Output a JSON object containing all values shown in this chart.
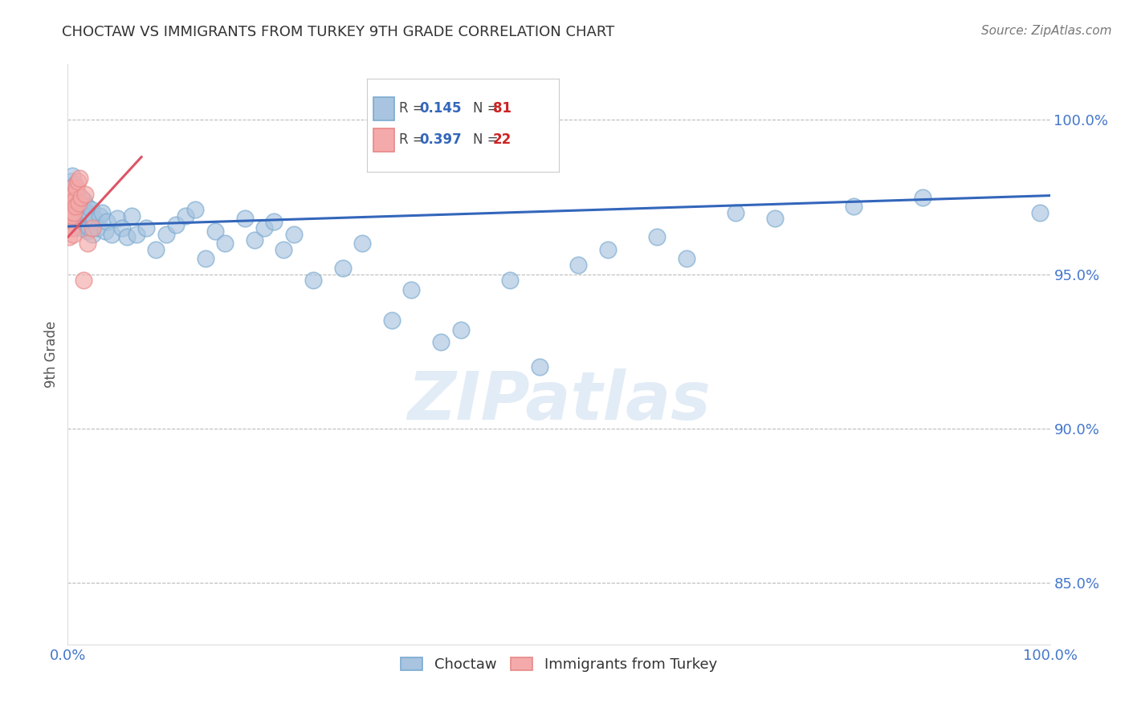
{
  "title": "CHOCTAW VS IMMIGRANTS FROM TURKEY 9TH GRADE CORRELATION CHART",
  "source": "Source: ZipAtlas.com",
  "ylabel": "9th Grade",
  "xlim": [
    0.0,
    100.0
  ],
  "ylim": [
    83.0,
    101.8
  ],
  "yticks": [
    85.0,
    90.0,
    95.0,
    100.0
  ],
  "xticks": [
    0.0,
    100.0
  ],
  "blue_color": "#A8C4E0",
  "pink_color": "#F4AAAA",
  "blue_edge_color": "#7AAAD0",
  "pink_edge_color": "#E88888",
  "blue_line_color": "#3366BB",
  "pink_line_color": "#DD5566",
  "axis_color": "#4477CC",
  "title_color": "#333333",
  "watermark_text": "ZIPatlas",
  "blue_line_x": [
    0.0,
    100.0
  ],
  "blue_line_y": [
    96.55,
    97.55
  ],
  "pink_line_x": [
    0.0,
    7.5
  ],
  "pink_line_y": [
    96.2,
    98.8
  ],
  "blue_scatter_x": [
    0.2,
    0.3,
    0.3,
    0.4,
    0.4,
    0.5,
    0.5,
    0.5,
    0.6,
    0.6,
    0.7,
    0.7,
    0.7,
    0.8,
    0.8,
    0.9,
    1.0,
    1.0,
    1.1,
    1.2,
    1.3,
    1.4,
    1.5,
    1.5,
    1.6,
    1.7,
    1.8,
    1.9,
    2.0,
    2.0,
    2.1,
    2.2,
    2.3,
    2.4,
    2.5,
    2.6,
    2.7,
    3.0,
    3.2,
    3.5,
    3.8,
    4.0,
    4.5,
    5.0,
    5.5,
    6.0,
    6.5,
    7.0,
    8.0,
    9.0,
    10.0,
    11.0,
    12.0,
    13.0,
    14.0,
    15.0,
    16.0,
    18.0,
    19.0,
    20.0,
    21.0,
    22.0,
    23.0,
    25.0,
    28.0,
    30.0,
    33.0,
    35.0,
    38.0,
    40.0,
    45.0,
    48.0,
    52.0,
    55.0,
    60.0,
    63.0,
    68.0,
    72.0,
    80.0,
    87.0,
    99.0
  ],
  "blue_scatter_y": [
    97.2,
    97.5,
    98.0,
    97.8,
    97.3,
    98.2,
    97.0,
    97.6,
    97.4,
    96.8,
    97.9,
    97.1,
    96.5,
    97.3,
    97.7,
    96.9,
    97.2,
    97.6,
    97.0,
    96.8,
    97.3,
    96.5,
    97.1,
    96.7,
    97.4,
    96.6,
    97.0,
    97.2,
    96.4,
    97.0,
    96.8,
    96.5,
    96.9,
    97.1,
    96.3,
    96.7,
    96.8,
    96.5,
    96.9,
    97.0,
    96.4,
    96.7,
    96.3,
    96.8,
    96.5,
    96.2,
    96.9,
    96.3,
    96.5,
    95.8,
    96.3,
    96.6,
    96.9,
    97.1,
    95.5,
    96.4,
    96.0,
    96.8,
    96.1,
    96.5,
    96.7,
    95.8,
    96.3,
    94.8,
    95.2,
    96.0,
    93.5,
    94.5,
    92.8,
    93.2,
    94.8,
    92.0,
    95.3,
    95.8,
    96.2,
    95.5,
    97.0,
    96.8,
    97.2,
    97.5,
    97.0
  ],
  "pink_scatter_x": [
    0.15,
    0.2,
    0.25,
    0.3,
    0.35,
    0.4,
    0.45,
    0.5,
    0.55,
    0.6,
    0.65,
    0.7,
    0.8,
    0.9,
    1.0,
    1.1,
    1.2,
    1.4,
    1.6,
    1.8,
    2.0,
    2.5
  ],
  "pink_scatter_y": [
    96.2,
    97.0,
    96.8,
    97.5,
    96.5,
    97.2,
    96.9,
    97.8,
    96.3,
    97.6,
    97.0,
    97.4,
    97.2,
    97.8,
    98.0,
    97.3,
    98.1,
    97.5,
    94.8,
    97.6,
    96.0,
    96.5
  ]
}
